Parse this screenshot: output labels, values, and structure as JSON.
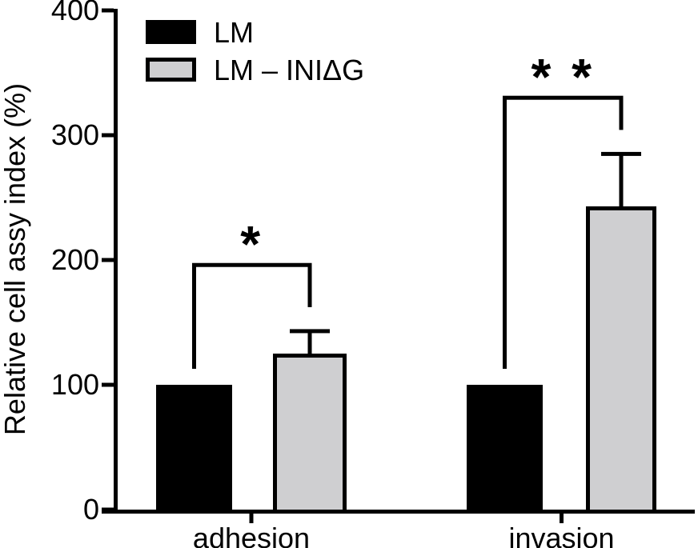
{
  "chart_data": {
    "type": "bar",
    "title": "",
    "xlabel": "",
    "ylabel": "Relative cell assy index (%)",
    "categories": [
      "adhesion",
      "invasion"
    ],
    "series": [
      {
        "name": "LM",
        "color": "#000000",
        "values": [
          100,
          100
        ],
        "errors": [
          null,
          null
        ]
      },
      {
        "name": "LM – INIΔG",
        "color": "#cfcfd1",
        "values": [
          125,
          243
        ],
        "errors": [
          18,
          42
        ]
      }
    ],
    "ylim": [
      0,
      400
    ],
    "yticks": [
      0,
      100,
      200,
      300,
      400
    ],
    "ytick_labels": [
      "0",
      "100",
      "200",
      "300",
      "400"
    ],
    "grid": false,
    "legend_position": "top-left",
    "axis_color": "#000000",
    "bar_outline_color": "#000000",
    "significance": [
      {
        "category": "adhesion",
        "label": "*",
        "from_series": "LM",
        "to_series": "LM – INIΔG",
        "bracket_top_value": 196
      },
      {
        "category": "invasion",
        "label": "* *",
        "from_series": "LM",
        "to_series": "LM – INIΔG",
        "bracket_top_value": 330
      }
    ]
  }
}
